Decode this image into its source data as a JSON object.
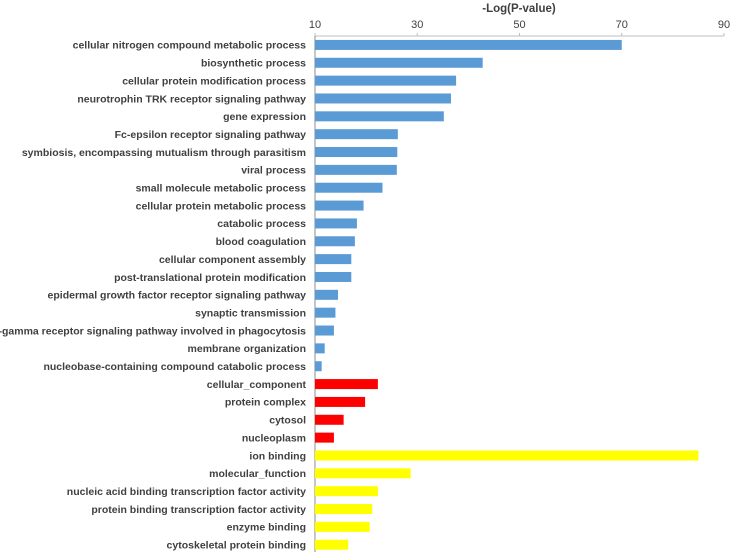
{
  "chart_data": {
    "type": "bar",
    "orientation": "horizontal",
    "title": "-Log(P-value)",
    "xlim": [
      10,
      90
    ],
    "xticks": [
      10,
      30,
      50,
      70,
      90
    ],
    "axis_position": "top",
    "grid": false,
    "legend": "none",
    "categories": [
      "cellular nitrogen compound metabolic process",
      "biosynthetic process",
      "cellular protein modification process",
      "neurotrophin TRK receptor signaling pathway",
      "gene expression",
      "Fc-epsilon receptor signaling pathway",
      "symbiosis, encompassing mutualism through parasitism",
      "viral process",
      "small molecule metabolic process",
      "cellular protein metabolic process",
      "catabolic process",
      "blood coagulation",
      "cellular component assembly",
      "post-translational protein modification",
      "epidermal growth factor receptor signaling pathway",
      "synaptic transmission",
      "Fc-gamma receptor signaling pathway involved in phagocytosis",
      "membrane organization",
      "nucleobase-containing compound catabolic process",
      "cellular_component",
      "protein complex",
      "cytosol",
      "nucleoplasm",
      "ion binding",
      "molecular_function",
      "nucleic acid binding transcription factor activity",
      "protein binding transcription factor activity",
      "enzyme binding",
      "cytoskeletal protein binding"
    ],
    "values": [
      70,
      42.8,
      37.6,
      36.6,
      35.2,
      26.2,
      26.1,
      26.0,
      23.2,
      19.5,
      18.2,
      17.8,
      17.1,
      17.1,
      14.5,
      14.0,
      13.7,
      11.9,
      11.3,
      22.3,
      19.8,
      15.6,
      13.7,
      85,
      28.7,
      22.3,
      21.2,
      20.7,
      16.5
    ],
    "colors": [
      "#5b9bd5",
      "#5b9bd5",
      "#5b9bd5",
      "#5b9bd5",
      "#5b9bd5",
      "#5b9bd5",
      "#5b9bd5",
      "#5b9bd5",
      "#5b9bd5",
      "#5b9bd5",
      "#5b9bd5",
      "#5b9bd5",
      "#5b9bd5",
      "#5b9bd5",
      "#5b9bd5",
      "#5b9bd5",
      "#5b9bd5",
      "#5b9bd5",
      "#5b9bd5",
      "#ff0000",
      "#ff0000",
      "#ff0000",
      "#ff0000",
      "#ffff00",
      "#ffff00",
      "#ffff00",
      "#ffff00",
      "#ffff00",
      "#ffff00"
    ],
    "group_colors": {
      "biological_process": "#5b9bd5",
      "cellular_component": "#ff0000",
      "molecular_function": "#ffff00"
    }
  }
}
